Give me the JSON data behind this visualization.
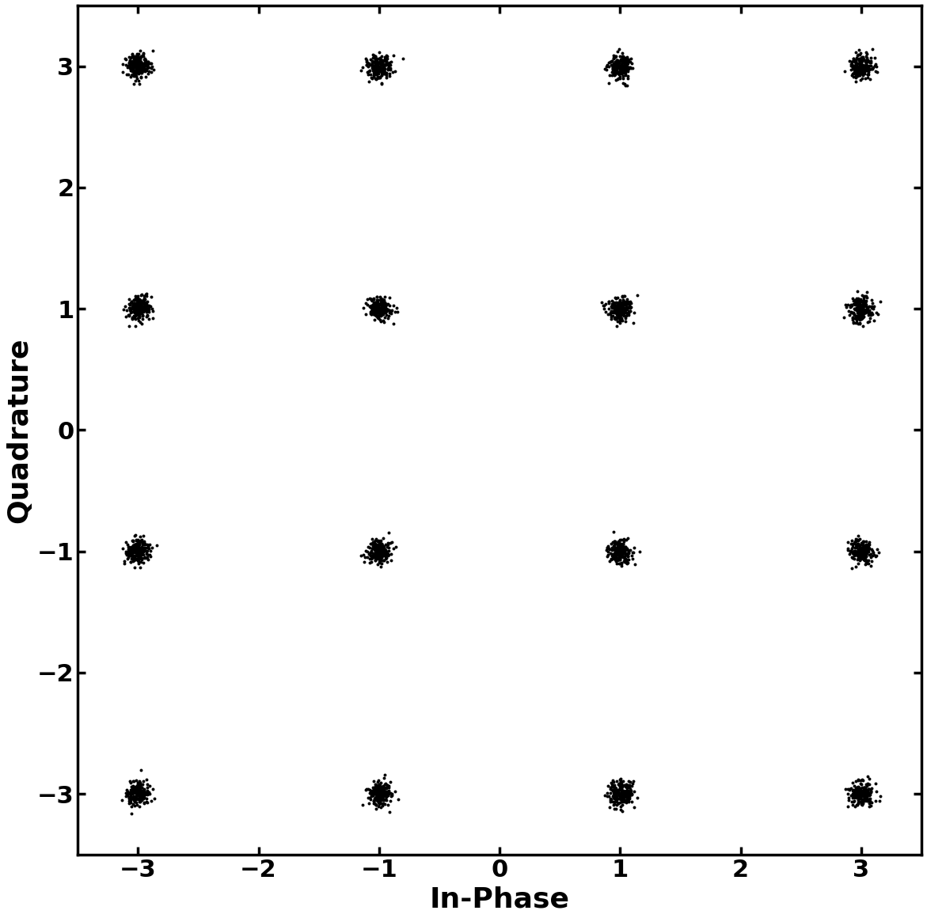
{
  "constellation_points_x": [
    -3,
    -1,
    1,
    3
  ],
  "constellation_points_y": [
    -3,
    -1,
    1,
    3
  ],
  "noise_std": 0.05,
  "n_points_per_cluster": 200,
  "seed": 42,
  "point_color": "#000000",
  "point_size": 8,
  "point_alpha": 1.0,
  "background_color": "#ffffff",
  "xlabel": "In-Phase",
  "ylabel": "Quadrature",
  "xlim": [
    -3.5,
    3.5
  ],
  "ylim": [
    -3.5,
    3.5
  ],
  "xticks": [
    -3,
    -2,
    -1,
    0,
    1,
    2,
    3
  ],
  "yticks": [
    -3,
    -2,
    -1,
    0,
    1,
    2,
    3
  ],
  "xlabel_fontsize": 26,
  "ylabel_fontsize": 26,
  "tick_fontsize": 22,
  "tick_fontweight": "bold",
  "label_fontweight": "bold",
  "linewidth": 2.5
}
